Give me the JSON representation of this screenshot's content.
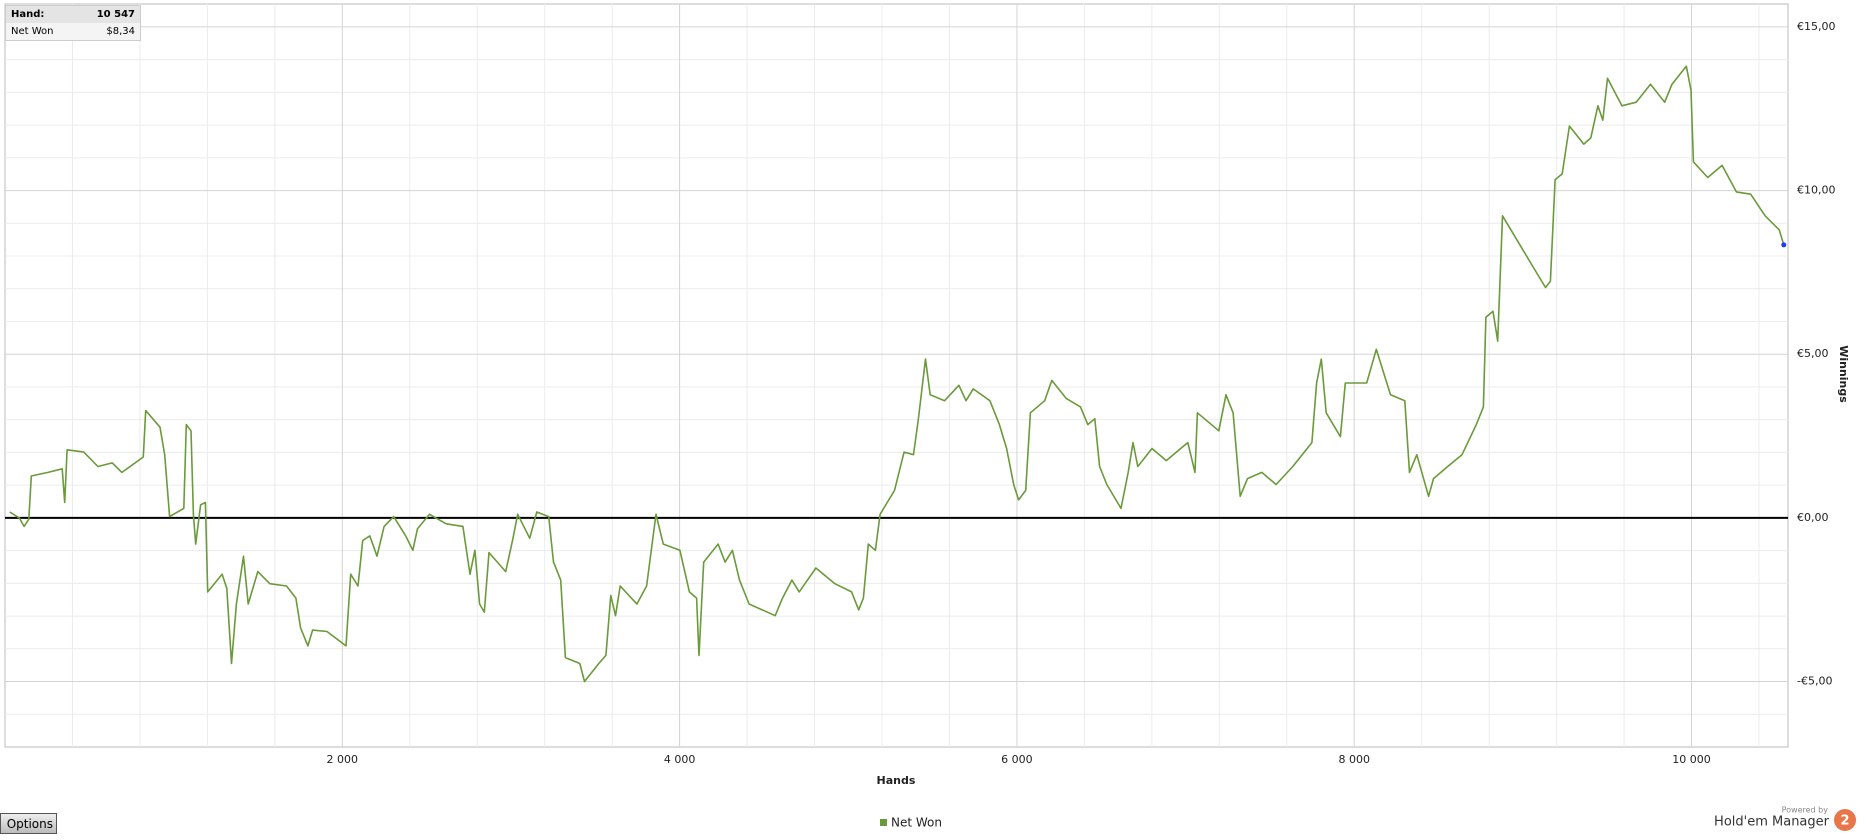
{
  "info": {
    "hand": "Hand:",
    "hand_value": "10 547",
    "net_won": "Net Won",
    "net_won_value": "$8,34"
  },
  "options": "Options",
  "branding": {
    "powered_by": "Powered by",
    "product": "Hold'em Manager",
    "badge": "2"
  },
  "chart_data": {
    "type": "line",
    "x_label": "Hands",
    "y_label": "Winnings",
    "x": [
      28,
      85,
      113,
      141,
      156,
      255,
      339,
      354,
      368,
      467,
      551,
      636,
      693,
      820,
      834,
      919,
      947,
      976,
      1060,
      1075,
      1103,
      1117,
      1131,
      1160,
      1188,
      1202,
      1287,
      1315,
      1343,
      1372,
      1414,
      1442,
      1499,
      1570,
      1669,
      1725,
      1753,
      1796,
      1824,
      1909,
      2022,
      2050,
      2093,
      2121,
      2163,
      2206,
      2248,
      2305,
      2376,
      2418,
      2446,
      2517,
      2616,
      2715,
      2757,
      2786,
      2814,
      2842,
      2870,
      2969,
      3012,
      3040,
      3111,
      3153,
      3224,
      3252,
      3295,
      3323,
      3408,
      3436,
      3521,
      3563,
      3592,
      3620,
      3648,
      3747,
      3804,
      3860,
      3903,
      4002,
      4058,
      4101,
      4115,
      4143,
      4228,
      4270,
      4313,
      4355,
      4412,
      4567,
      4610,
      4666,
      4709,
      4808,
      4921,
      5020,
      5062,
      5090,
      5119,
      5161,
      5189,
      5274,
      5331,
      5387,
      5416,
      5458,
      5486,
      5571,
      5656,
      5698,
      5741,
      5840,
      5896,
      5939,
      5981,
      6010,
      6052,
      6080,
      6165,
      6207,
      6292,
      6377,
      6420,
      6462,
      6490,
      6533,
      6617,
      6660,
      6688,
      6717,
      6801,
      6886,
      6971,
      7013,
      7056,
      7070,
      7197,
      7240,
      7282,
      7324,
      7367,
      7452,
      7537,
      7636,
      7749,
      7777,
      7805,
      7834,
      7918,
      7947,
      8074,
      8131,
      8215,
      8300,
      8328,
      8371,
      8441,
      8470,
      8554,
      8639,
      8724,
      8766,
      8781,
      8823,
      8851,
      8879,
      8964,
      9049,
      9134,
      9163,
      9191,
      9233,
      9276,
      9361,
      9403,
      9445,
      9474,
      9502,
      9587,
      9672,
      9757,
      9841,
      9884,
      9969,
      9997,
      10011,
      10096,
      10181,
      10266,
      10351,
      10436,
      10520,
      10547
    ],
    "series": [
      {
        "name": "Net Won",
        "color": "#6a9a3a",
        "values": [
          0.18,
          0,
          -0.26,
          -0.04,
          1.28,
          1.39,
          1.5,
          0.47,
          2.08,
          2.01,
          1.57,
          1.68,
          1.39,
          1.86,
          3.28,
          2.77,
          1.93,
          0.04,
          0.29,
          2.85,
          2.66,
          0.11,
          -0.8,
          0.4,
          0.47,
          -2.26,
          -1.72,
          -2.15,
          -4.45,
          -2.63,
          -1.17,
          -2.63,
          -1.64,
          -2.01,
          -2.08,
          -2.45,
          -3.36,
          -3.91,
          -3.43,
          -3.47,
          -3.91,
          -1.72,
          -2.08,
          -0.69,
          -0.55,
          -1.17,
          -0.26,
          0.04,
          -0.55,
          -0.99,
          -0.33,
          0.11,
          -0.18,
          -0.26,
          -1.72,
          -0.99,
          -2.63,
          -2.88,
          -1.06,
          -1.64,
          -0.62,
          0.11,
          -0.62,
          0.18,
          0.04,
          -1.35,
          -1.9,
          -4.27,
          -4.45,
          -5,
          -4.45,
          -4.2,
          -2.37,
          -2.99,
          -2.08,
          -2.63,
          -2.08,
          0.11,
          -0.8,
          -0.99,
          -2.26,
          -2.45,
          -4.2,
          -1.35,
          -0.8,
          -1.35,
          -0.99,
          -1.9,
          -2.63,
          -2.99,
          -2.45,
          -1.9,
          -2.26,
          -1.53,
          -2.01,
          -2.26,
          -2.81,
          -2.45,
          -0.8,
          -0.99,
          0.11,
          0.84,
          2.01,
          1.93,
          3.03,
          4.85,
          3.76,
          3.58,
          4.05,
          3.58,
          3.94,
          3.58,
          2.85,
          2.12,
          1.02,
          0.55,
          0.84,
          3.21,
          3.58,
          4.2,
          3.65,
          3.39,
          2.85,
          3.03,
          1.57,
          1.02,
          0.29,
          1.39,
          2.3,
          1.57,
          2.12,
          1.75,
          2.12,
          2.3,
          1.39,
          3.21,
          2.66,
          3.76,
          3.21,
          0.66,
          1.2,
          1.39,
          1.02,
          1.57,
          2.3,
          4.12,
          4.85,
          3.21,
          2.48,
          4.12,
          4.12,
          5.15,
          3.76,
          3.58,
          1.39,
          1.93,
          0.66,
          1.2,
          1.57,
          1.93,
          2.85,
          3.39,
          6.13,
          6.31,
          5.4,
          9.23,
          8.5,
          7.77,
          7.04,
          7.23,
          10.33,
          10.51,
          11.97,
          11.42,
          11.61,
          12.59,
          12.15,
          13.43,
          12.59,
          12.7,
          13.25,
          12.7,
          13.25,
          13.8,
          13.07,
          10.88,
          10.4,
          10.77,
          9.96,
          9.89,
          9.23,
          8.8,
          8.34
        ]
      }
    ],
    "end_marker_color": "#1a3aff",
    "xlim": [
      0,
      10572
    ],
    "xticks": [
      {
        "value": 2000,
        "label": "2 000"
      },
      {
        "value": 4000,
        "label": "4 000"
      },
      {
        "value": 6000,
        "label": "6 000"
      },
      {
        "value": 8000,
        "label": "8 000"
      },
      {
        "value": 10000,
        "label": "10 000"
      }
    ],
    "x_minor_ticks": [
      400,
      800,
      1200,
      1600,
      2400,
      2800,
      3200,
      3600,
      4400,
      4800,
      5200,
      5600,
      6400,
      6800,
      7200,
      7600,
      8400,
      8800,
      9200,
      9600,
      10400
    ],
    "ylim": [
      -7,
      15.7
    ],
    "yticks": [
      {
        "value": -5,
        "label": "-€5,00"
      },
      {
        "value": 0,
        "label": "€0,00"
      },
      {
        "value": 5,
        "label": "€5,00"
      },
      {
        "value": 10,
        "label": "€10,00"
      },
      {
        "value": 15,
        "label": "€15,00"
      }
    ],
    "y_minor_ticks": [
      -6,
      -4,
      -3,
      -2,
      -1,
      1,
      2,
      3,
      4,
      6,
      7,
      8,
      9,
      11,
      12,
      13,
      14
    ],
    "zero_line": true,
    "grid": true,
    "legend": "bottom"
  }
}
